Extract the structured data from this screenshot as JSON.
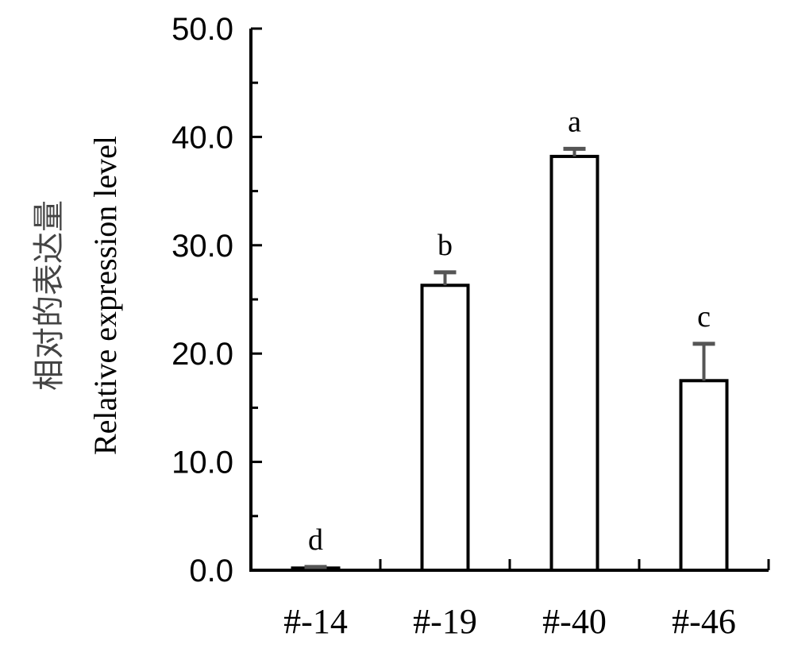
{
  "chart_data": {
    "type": "bar",
    "title": "",
    "xlabel": "",
    "ylabel": "Relative expression level",
    "ylabel_cn": "相对的表达量",
    "ylim": [
      0,
      50
    ],
    "yticks": [
      0,
      10,
      20,
      30,
      40,
      50
    ],
    "ytick_labels": [
      "0.0",
      "10.0",
      "20.0",
      "30.0",
      "40.0",
      "50.0"
    ],
    "grid": false,
    "legend": "none",
    "categories": [
      "#-14",
      "#-19",
      "#-40",
      "#-46"
    ],
    "values": [
      0.2,
      26.3,
      38.2,
      17.5
    ],
    "errors": [
      0.1,
      1.2,
      0.7,
      3.4
    ],
    "significance": [
      "d",
      "b",
      "a",
      "c"
    ],
    "colors": {
      "bar_fill": "#ffffff",
      "bar_stroke": "#000000",
      "error_bar": "#555555",
      "axis": "#000000",
      "ylabel_cn": "#444444"
    }
  }
}
